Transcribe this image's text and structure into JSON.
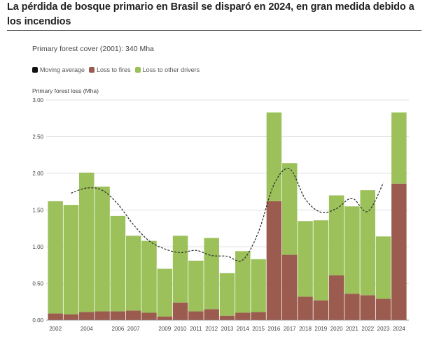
{
  "header": {
    "title": "La pérdida de bosque primario en Brasil se disparó en 2024, en gran medida debido a los incendios"
  },
  "subtitle": "Primary forest cover (2001): 340 Mha",
  "legend": {
    "items": [
      {
        "label": "Moving average",
        "color": "#111111"
      },
      {
        "label": "Loss to fires",
        "color": "#9b5b4e"
      },
      {
        "label": "Loss to other drivers",
        "color": "#9cc15a"
      }
    ]
  },
  "chart_data": {
    "type": "bar",
    "stacked": true,
    "ylabel": "Primary forest loss (Mha)",
    "ylim": [
      0,
      3
    ],
    "yticks": [
      "0.00",
      "0.50",
      "1.00",
      "1.50",
      "2.00",
      "2.50",
      "3.00"
    ],
    "categories": [
      "2002",
      "2003",
      "2004",
      "2005",
      "2006",
      "2007",
      "2008",
      "2009",
      "2010",
      "2011",
      "2012",
      "2013",
      "2014",
      "2015",
      "2016",
      "2017",
      "2018",
      "2019",
      "2020",
      "2021",
      "2022",
      "2023",
      "2024"
    ],
    "xtick_labels": [
      "2002",
      "",
      "2004",
      "",
      "2006",
      "2007",
      "",
      "2009",
      "2010",
      "2011",
      "2012",
      "2013",
      "2014",
      "2015",
      "2016",
      "2017",
      "2018",
      "2019",
      "2020",
      "2021",
      "2022",
      "2023",
      "2024"
    ],
    "series": [
      {
        "name": "Loss to fires",
        "color": "#9b5b4e",
        "values": [
          0.09,
          0.08,
          0.11,
          0.12,
          0.12,
          0.13,
          0.1,
          0.05,
          0.24,
          0.12,
          0.15,
          0.06,
          0.1,
          0.11,
          1.62,
          0.89,
          0.32,
          0.27,
          0.61,
          0.36,
          0.34,
          0.29,
          1.86
        ]
      },
      {
        "name": "Loss to other drivers",
        "color": "#9cc15a",
        "values": [
          1.53,
          1.49,
          1.9,
          1.7,
          1.3,
          1.02,
          0.98,
          0.65,
          0.91,
          0.69,
          0.97,
          0.58,
          0.84,
          0.72,
          1.21,
          1.25,
          1.03,
          1.09,
          1.09,
          1.19,
          1.43,
          0.85,
          0.97
        ]
      }
    ],
    "moving_average": {
      "name": "Moving average",
      "x": [
        "2003",
        "2004",
        "2005",
        "2006",
        "2007",
        "2008",
        "2009",
        "2010",
        "2011",
        "2012",
        "2013",
        "2014",
        "2015",
        "2016",
        "2017",
        "2018",
        "2019",
        "2020",
        "2021",
        "2022",
        "2023"
      ],
      "values": [
        1.73,
        1.8,
        1.77,
        1.58,
        1.3,
        1.08,
        0.97,
        0.92,
        0.95,
        0.88,
        0.87,
        0.82,
        1.2,
        1.85,
        2.06,
        1.65,
        1.47,
        1.52,
        1.66,
        1.48,
        1.87
      ]
    },
    "grid": true
  }
}
